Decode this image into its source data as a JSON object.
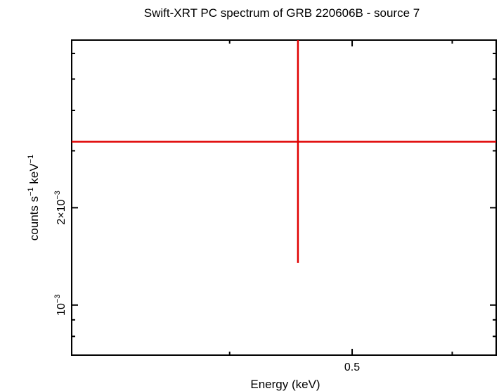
{
  "chart_data": {
    "type": "scatter",
    "title": "Swift-XRT PC spectrum of GRB 220606B - source 7",
    "xlabel": "Energy (keV)",
    "ylabel": {
      "base": "counts s",
      "exp1": "−1",
      "mid": " keV",
      "exp2": "−1"
    },
    "x_scale": "log",
    "y_scale": "log",
    "xlim": [
      0.3,
      0.65
    ],
    "ylim": [
      0.0007,
      0.0066
    ],
    "x_ticks": [
      {
        "value": 0.5,
        "label": "0.5"
      }
    ],
    "x_minor_ticks": [
      0.4,
      0.6
    ],
    "y_ticks": [
      {
        "value": 0.001,
        "mantissa": "",
        "base": "10",
        "exp": "−3"
      },
      {
        "value": 0.002,
        "mantissa": "2×",
        "base": "10",
        "exp": "−3"
      }
    ],
    "y_minor_ticks": [
      0.0008,
      0.0009,
      0.003,
      0.004,
      0.005,
      0.006
    ],
    "points": [
      {
        "x": 0.453,
        "xerr": [
          0.3,
          0.65
        ],
        "y": 0.0032,
        "yerr": [
          0.00135,
          0.0066
        ]
      }
    ],
    "colors": {
      "data": "#e00000",
      "frame": "#000000"
    },
    "grid": false,
    "legend": "none"
  }
}
